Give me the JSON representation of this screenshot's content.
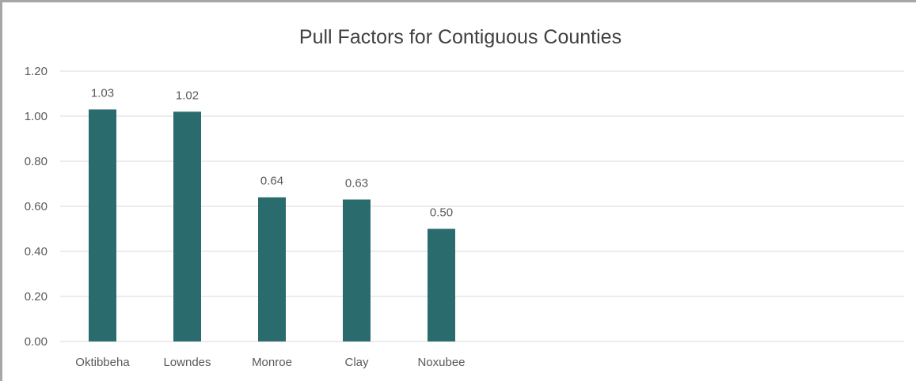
{
  "chart_data": {
    "type": "bar",
    "title": "Pull Factors for Contiguous Counties",
    "categories": [
      "Oktibbeha",
      "Lowndes",
      "Monroe",
      "Clay",
      "Noxubee"
    ],
    "values": [
      1.03,
      1.02,
      0.64,
      0.63,
      0.5
    ],
    "data_labels": [
      "1.03",
      "1.02",
      "0.64",
      "0.63",
      "0.50"
    ],
    "y_ticks": [
      "0.00",
      "0.20",
      "0.40",
      "0.60",
      "0.80",
      "1.00",
      "1.20"
    ],
    "ylim": [
      0,
      1.2
    ],
    "grid": true,
    "legend": "none",
    "bar_color": "#2a6b6e",
    "gridline_color": "#d9d9d9"
  }
}
